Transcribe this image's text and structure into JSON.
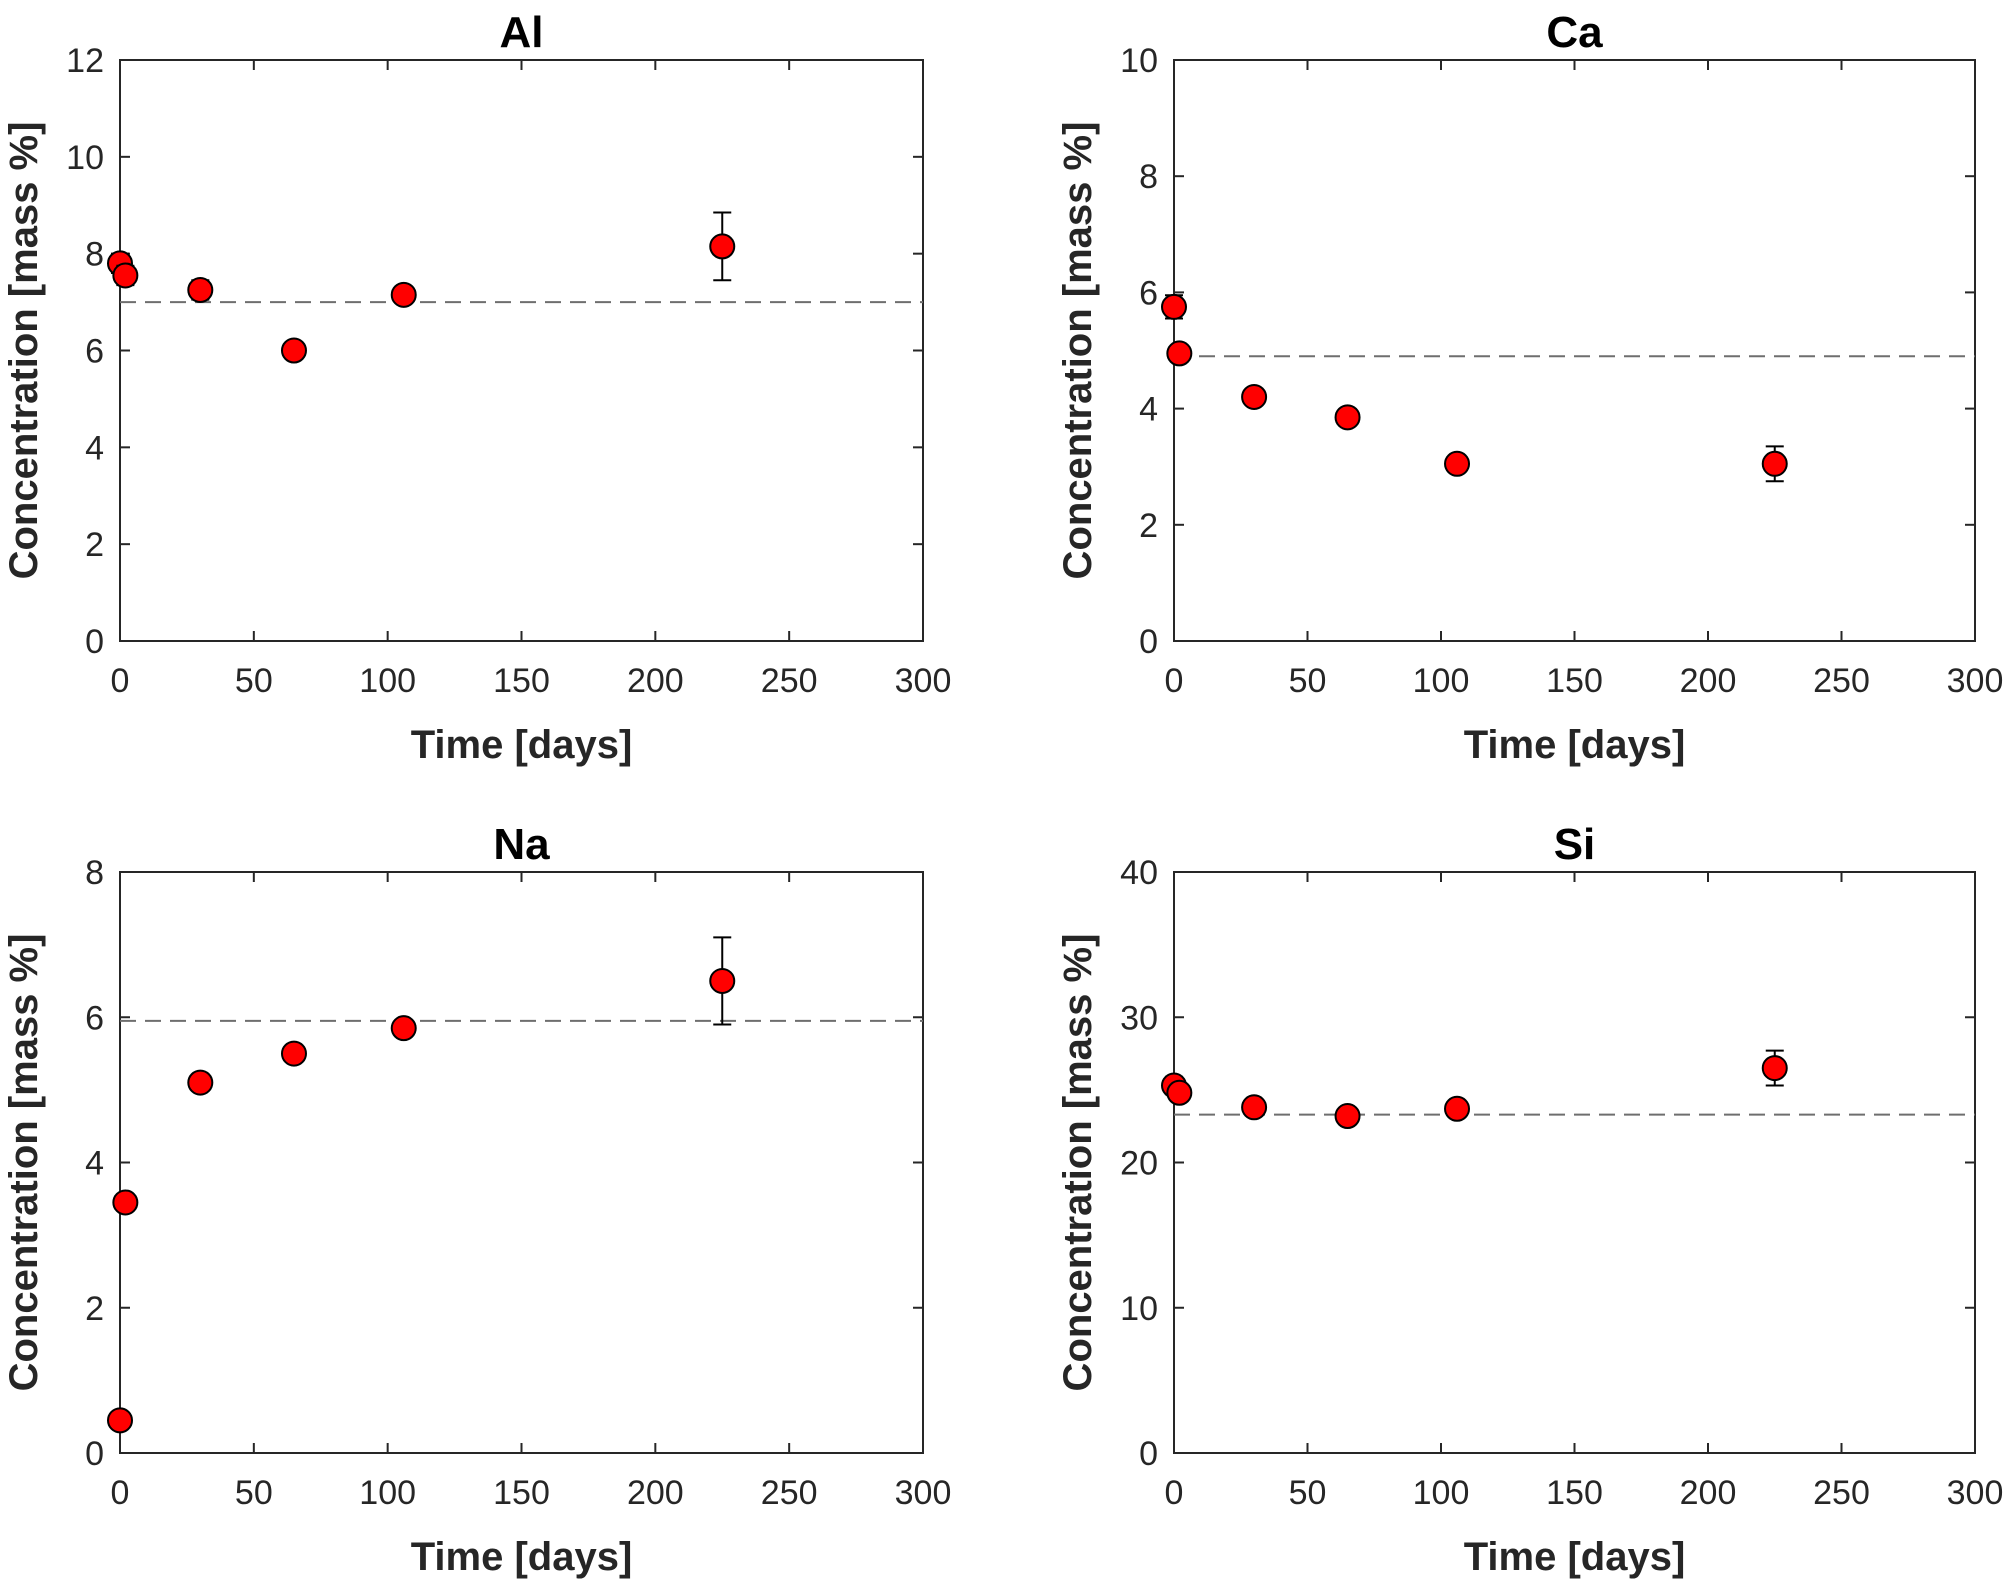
{
  "chart_data": [
    {
      "type": "scatter",
      "title": "Al",
      "xlabel": "Time [days]",
      "ylabel": "Concentration [mass %]",
      "xlim": [
        0,
        300
      ],
      "ylim": [
        0,
        12
      ],
      "xticks": [
        "0",
        "50",
        "100",
        "150",
        "200",
        "250",
        "300"
      ],
      "yticks": [
        "0",
        "2",
        "4",
        "6",
        "8",
        "10",
        "12"
      ],
      "reference_line": 7.0,
      "points": [
        {
          "x": 0,
          "y": 7.8,
          "err": 0.2
        },
        {
          "x": 2,
          "y": 7.55,
          "err": 0.2
        },
        {
          "x": 30,
          "y": 7.25,
          "err": 0.2
        },
        {
          "x": 65,
          "y": 6.0,
          "err": 0.15
        },
        {
          "x": 106,
          "y": 7.15,
          "err": 0.15
        },
        {
          "x": 225,
          "y": 8.15,
          "err": 0.7
        }
      ]
    },
    {
      "type": "scatter",
      "title": "Ca",
      "xlabel": "Time [days]",
      "ylabel": "Concentration [mass %]",
      "xlim": [
        0,
        300
      ],
      "ylim": [
        0,
        10
      ],
      "xticks": [
        "0",
        "50",
        "100",
        "150",
        "200",
        "250",
        "300"
      ],
      "yticks": [
        "0",
        "2",
        "4",
        "6",
        "8",
        "10"
      ],
      "reference_line": 4.9,
      "points": [
        {
          "x": 0,
          "y": 5.75,
          "err": 0.2
        },
        {
          "x": 2,
          "y": 4.95,
          "err": 0.1
        },
        {
          "x": 30,
          "y": 4.2,
          "err": 0.08
        },
        {
          "x": 65,
          "y": 3.85,
          "err": 0.08
        },
        {
          "x": 106,
          "y": 3.05,
          "err": 0.08
        },
        {
          "x": 225,
          "y": 3.05,
          "err": 0.3
        }
      ]
    },
    {
      "type": "scatter",
      "title": "Na",
      "xlabel": "Time [days]",
      "ylabel": "Concentration [mass %]",
      "xlim": [
        0,
        300
      ],
      "ylim": [
        0,
        8
      ],
      "xticks": [
        "0",
        "50",
        "100",
        "150",
        "200",
        "250",
        "300"
      ],
      "yticks": [
        "0",
        "2",
        "4",
        "6",
        "8"
      ],
      "reference_line": 5.95,
      "points": [
        {
          "x": 0,
          "y": 0.45,
          "err": 0.05
        },
        {
          "x": 2,
          "y": 3.45,
          "err": 0.08
        },
        {
          "x": 30,
          "y": 5.1,
          "err": 0.08
        },
        {
          "x": 65,
          "y": 5.5,
          "err": 0.08
        },
        {
          "x": 106,
          "y": 5.85,
          "err": 0.08
        },
        {
          "x": 225,
          "y": 6.5,
          "err": 0.6
        }
      ]
    },
    {
      "type": "scatter",
      "title": "Si",
      "xlabel": "Time [days]",
      "ylabel": "Concentration [mass %]",
      "xlim": [
        0,
        300
      ],
      "ylim": [
        0,
        40
      ],
      "xticks": [
        "0",
        "50",
        "100",
        "150",
        "200",
        "250",
        "300"
      ],
      "yticks": [
        "0",
        "10",
        "20",
        "30",
        "40"
      ],
      "reference_line": 23.3,
      "points": [
        {
          "x": 0,
          "y": 25.3,
          "err": 0.6
        },
        {
          "x": 2,
          "y": 24.8,
          "err": 0.5
        },
        {
          "x": 30,
          "y": 23.8,
          "err": 0.4
        },
        {
          "x": 65,
          "y": 23.2,
          "err": 0.4
        },
        {
          "x": 106,
          "y": 23.7,
          "err": 0.5
        },
        {
          "x": 225,
          "y": 26.5,
          "err": 1.2
        }
      ]
    }
  ],
  "colors": {
    "marker_fill": "#ff0000",
    "marker_edge": "#000000",
    "reference_line": "#6e6e6e",
    "axes": "#262626"
  }
}
